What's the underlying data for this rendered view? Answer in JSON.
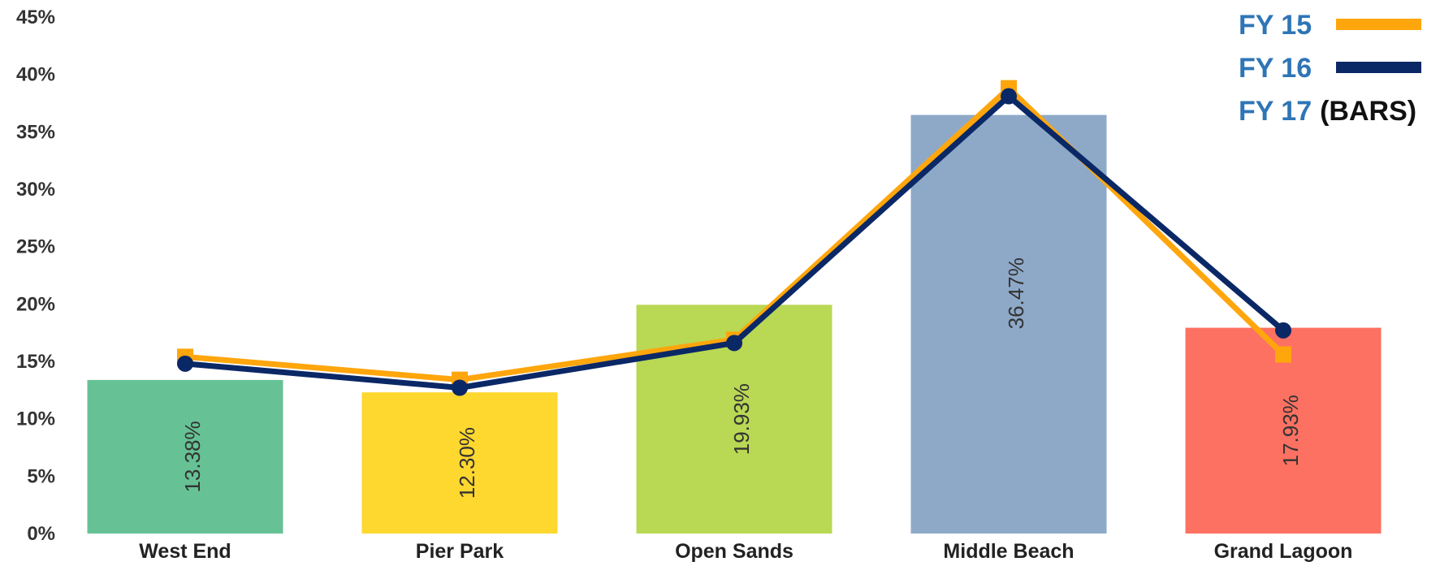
{
  "chart_data": {
    "type": "bar",
    "categories": [
      "West End",
      "Pier Park",
      "Open Sands",
      "Middle Beach",
      "Grand Lagoon"
    ],
    "yticks": [
      "0%",
      "5%",
      "10%",
      "15%",
      "20%",
      "25%",
      "30%",
      "35%",
      "40%",
      "45%"
    ],
    "ylim": [
      0,
      45
    ],
    "grid": false,
    "legend_position": "top-right",
    "bars": {
      "values": [
        13.38,
        12.3,
        19.93,
        36.47,
        17.93
      ],
      "labels": [
        "13.38%",
        "12.30%",
        "19.93%",
        "36.47%",
        "17.93%"
      ],
      "colors": [
        "#66c295",
        "#fed72f",
        "#b9d854",
        "#8ea9c8",
        "#fd7162"
      ]
    },
    "series": [
      {
        "name": "FY 15",
        "type": "line",
        "values": [
          15.4,
          13.4,
          16.9,
          38.8,
          15.6
        ],
        "color": "#ffa60d",
        "marker": "square"
      },
      {
        "name": "FY 16",
        "type": "line",
        "values": [
          14.8,
          12.7,
          16.6,
          38.1,
          17.7
        ],
        "color": "#0b2866",
        "marker": "circle"
      }
    ],
    "legend": [
      {
        "name": "FY 15",
        "suffix": "",
        "swatch": "#ffa60d"
      },
      {
        "name": "FY 16",
        "suffix": "",
        "swatch": "#0b2866"
      },
      {
        "name": "FY 17",
        "suffix": "(BARS)",
        "swatch": ""
      }
    ],
    "legend_name_color": "#2e75b6",
    "legend_suffix_color": "#111111"
  }
}
